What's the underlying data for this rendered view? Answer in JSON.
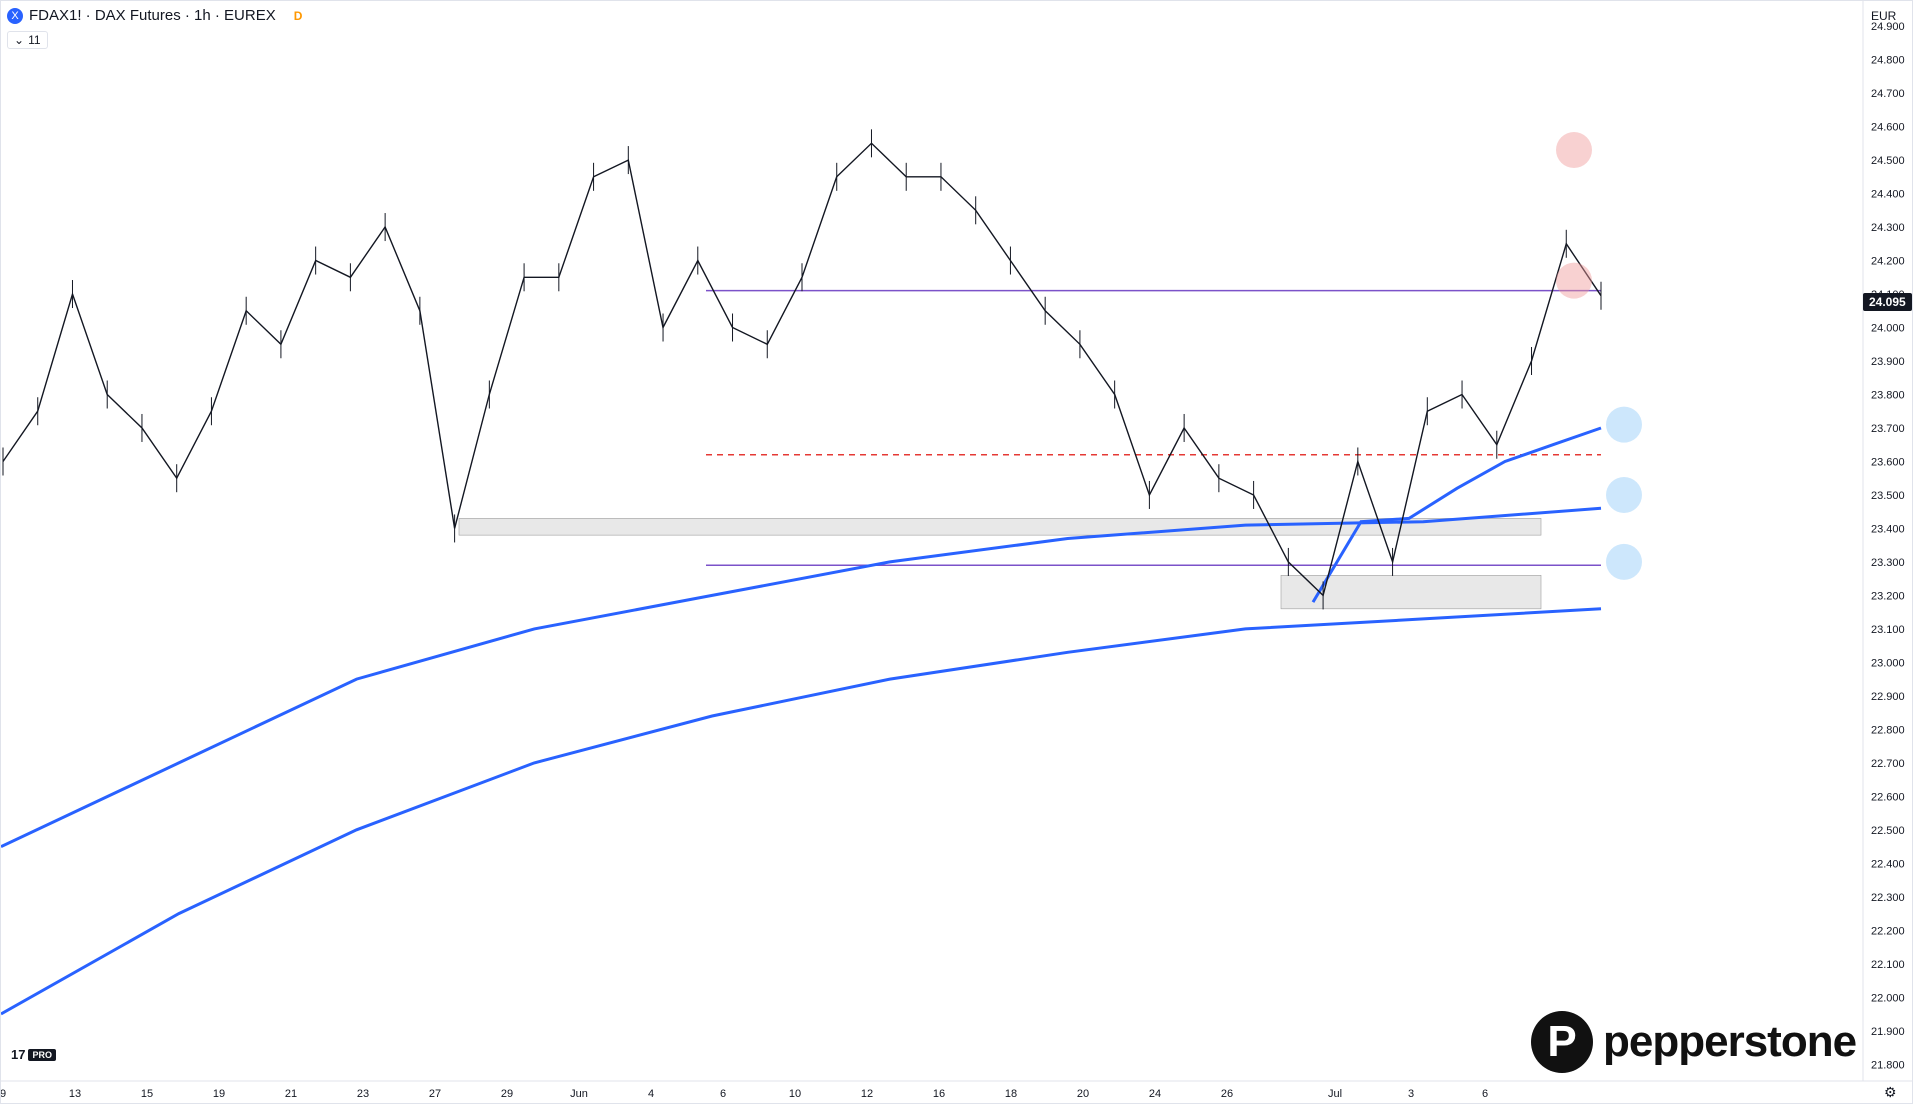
{
  "header": {
    "symbol_icon": "X",
    "title": "FDAX1! · DAX Futures · 1h · EUREX",
    "delay_badge": "D",
    "indicator_toggle": "11"
  },
  "currency": "EUR",
  "last_price": "24.095",
  "branding": {
    "tradingview": "17",
    "tradingview_tier": "PRO",
    "broker": "pepperstone",
    "broker_mark": "P"
  },
  "colors": {
    "candles": "#131722",
    "vwap_band": "#2962ff",
    "hline_purple": "#7b52c9",
    "hline_red_dashed": "#e53935",
    "bubble_red": "#ef9a9a",
    "bubble_blue": "#90caf9",
    "zone_grey": "#d9d9d9"
  },
  "chart_data": {
    "type": "line",
    "title": "FDAX1! · DAX Futures · 1h · EUREX",
    "xlabel": "",
    "ylabel": "",
    "ylim": [
      21750,
      24975
    ],
    "x_ticks": [
      "9",
      "13",
      "15",
      "19",
      "21",
      "23",
      "27",
      "29",
      "Jun",
      "4",
      "6",
      "10",
      "12",
      "16",
      "18",
      "20",
      "24",
      "26",
      "Jul",
      "3",
      "6"
    ],
    "y_ticks": [
      "24.900",
      "24.800",
      "24.700",
      "24.600",
      "24.500",
      "24.400",
      "24.300",
      "24.200",
      "24.100",
      "24.000",
      "23.900",
      "23.800",
      "23.700",
      "23.600",
      "23.500",
      "23.400",
      "23.300",
      "23.200",
      "23.100",
      "23.000",
      "22.900",
      "22.800",
      "22.700",
      "22.600",
      "22.500",
      "22.400",
      "22.300",
      "22.200",
      "22.100",
      "22.000",
      "21.900",
      "21.800"
    ],
    "price_path": [
      {
        "x": "9",
        "y": 23600
      },
      {
        "x": "11",
        "y": 23750
      },
      {
        "x": "12",
        "y": 24100
      },
      {
        "x": "13",
        "y": 23800
      },
      {
        "x": "14",
        "y": 23700
      },
      {
        "x": "15",
        "y": 23550
      },
      {
        "x": "16",
        "y": 23750
      },
      {
        "x": "18",
        "y": 24050
      },
      {
        "x": "19",
        "y": 23950
      },
      {
        "x": "20",
        "y": 24200
      },
      {
        "x": "21",
        "y": 24150
      },
      {
        "x": "22",
        "y": 24300
      },
      {
        "x": "23",
        "y": 24050
      },
      {
        "x": "23b",
        "y": 23400
      },
      {
        "x": "23c",
        "y": 23800
      },
      {
        "x": "26",
        "y": 24150
      },
      {
        "x": "27",
        "y": 24150
      },
      {
        "x": "28",
        "y": 24450
      },
      {
        "x": "29",
        "y": 24500
      },
      {
        "x": "30",
        "y": 24000
      },
      {
        "x": "31",
        "y": 24200
      },
      {
        "x": "Jun",
        "y": 24000
      },
      {
        "x": "2",
        "y": 23950
      },
      {
        "x": "3",
        "y": 24150
      },
      {
        "x": "4",
        "y": 24450
      },
      {
        "x": "5",
        "y": 24550
      },
      {
        "x": "6",
        "y": 24450
      },
      {
        "x": "7",
        "y": 24450
      },
      {
        "x": "9",
        "y": 24350
      },
      {
        "x": "10",
        "y": 24200
      },
      {
        "x": "11",
        "y": 24050
      },
      {
        "x": "12",
        "y": 23950
      },
      {
        "x": "13",
        "y": 23800
      },
      {
        "x": "13b",
        "y": 23500
      },
      {
        "x": "16",
        "y": 23700
      },
      {
        "x": "17",
        "y": 23550
      },
      {
        "x": "18",
        "y": 23500
      },
      {
        "x": "19",
        "y": 23300
      },
      {
        "x": "20",
        "y": 23200
      },
      {
        "x": "20b",
        "y": 23600
      },
      {
        "x": "23",
        "y": 23300
      },
      {
        "x": "24",
        "y": 23750
      },
      {
        "x": "25",
        "y": 23800
      },
      {
        "x": "26",
        "y": 23650
      },
      {
        "x": "27",
        "y": 23900
      },
      {
        "x": "28",
        "y": 24250
      },
      {
        "x": "28b",
        "y": 24095
      }
    ],
    "lower_band_1": [
      {
        "x": "9",
        "y": 22450
      },
      {
        "x": "15",
        "y": 22700
      },
      {
        "x": "21",
        "y": 22950
      },
      {
        "x": "27",
        "y": 23100
      },
      {
        "x": "Jun",
        "y": 23200
      },
      {
        "x": "6",
        "y": 23300
      },
      {
        "x": "12",
        "y": 23370
      },
      {
        "x": "18",
        "y": 23410
      },
      {
        "x": "24",
        "y": 23420
      },
      {
        "x": "28",
        "y": 23460
      }
    ],
    "lower_band_2": [
      {
        "x": "9",
        "y": 21950
      },
      {
        "x": "15",
        "y": 22250
      },
      {
        "x": "21",
        "y": 22500
      },
      {
        "x": "27",
        "y": 22700
      },
      {
        "x": "Jun",
        "y": 22840
      },
      {
        "x": "6",
        "y": 22950
      },
      {
        "x": "12",
        "y": 23030
      },
      {
        "x": "18",
        "y": 23100
      },
      {
        "x": "24",
        "y": 23130
      },
      {
        "x": "28",
        "y": 23160
      }
    ],
    "recent_band": [
      {
        "x": "20",
        "y": 23180
      },
      {
        "x": "21",
        "y": 23420
      },
      {
        "x": "23",
        "y": 23430
      },
      {
        "x": "24",
        "y": 23520
      },
      {
        "x": "26",
        "y": 23600
      },
      {
        "x": "27",
        "y": 23650
      },
      {
        "x": "28",
        "y": 23700
      }
    ],
    "horizontal_levels": [
      {
        "price": 24110,
        "style": "solid",
        "color": "purple"
      },
      {
        "price": 23620,
        "style": "dashed",
        "color": "red"
      },
      {
        "price": 23290,
        "style": "solid",
        "color": "purple"
      }
    ],
    "zones": [
      {
        "from": "23",
        "to": "27",
        "low": 23380,
        "high": 23430
      },
      {
        "from": "19",
        "to": "27",
        "low": 23160,
        "high": 23260
      }
    ],
    "markers": [
      {
        "x": "Jul",
        "y": 24530,
        "color": "red"
      },
      {
        "x": "28",
        "y": 24140,
        "color": "red"
      },
      {
        "x": "Jul",
        "y": 23710,
        "color": "blue"
      },
      {
        "x": "Jul",
        "y": 23500,
        "color": "blue"
      },
      {
        "x": "Jul",
        "y": 23300,
        "color": "blue"
      }
    ],
    "grid": false,
    "legend": "none"
  }
}
